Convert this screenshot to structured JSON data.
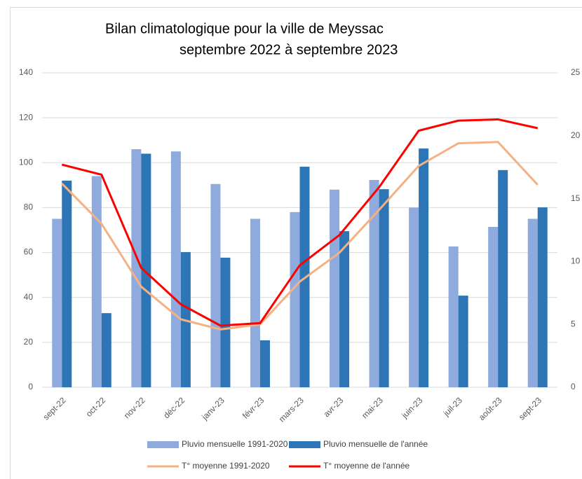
{
  "chart_data": {
    "type": "bar",
    "title": "Bilan climatologique pour la ville de Meyssac",
    "subtitle": "septembre 2022 à septembre 2023",
    "categories": [
      "sept-22",
      "oct-22",
      "nov-22",
      "déc-22",
      "janv-23",
      "févr-23",
      "mars-23",
      "avr-23",
      "mai-23",
      "juin-23",
      "juil-23",
      "août-23",
      "sept-23"
    ],
    "series": [
      {
        "name": "Pluvio mensuelle 1991-2020",
        "type": "bar",
        "color": "#8faadc",
        "values": [
          75,
          94,
          106,
          105,
          90.5,
          75,
          78,
          88,
          92.3,
          80,
          62.7,
          71.4,
          75
        ]
      },
      {
        "name": "Pluvio mensuelle de l'année",
        "type": "bar",
        "color": "#2e75b6",
        "values": [
          92,
          33,
          104,
          60.2,
          57.7,
          20.9,
          98.2,
          69.5,
          88.2,
          106.3,
          40.8,
          96.7,
          80.1
        ]
      },
      {
        "name": "T° moyenne 1991-2020",
        "type": "line",
        "axis": "y2",
        "color": "#f4b183",
        "values": [
          16.2,
          13.0,
          8.0,
          5.4,
          4.6,
          5.0,
          8.4,
          10.7,
          14.1,
          17.6,
          19.4,
          19.5,
          16.1
        ]
      },
      {
        "name": "T° moyenne de l'année",
        "type": "line",
        "axis": "y2",
        "color": "#ff0000",
        "values": [
          17.7,
          16.9,
          9.5,
          6.6,
          4.9,
          5.1,
          9.7,
          12.1,
          15.9,
          20.4,
          21.2,
          21.3,
          20.6
        ]
      }
    ],
    "ylim": [
      0,
      140
    ],
    "yticks": [
      0,
      20,
      40,
      60,
      80,
      100,
      120,
      140
    ],
    "y2lim": [
      0,
      25
    ],
    "y2ticks": [
      0,
      5,
      10,
      15,
      20,
      25
    ],
    "grid": true,
    "legend": "bottom"
  }
}
